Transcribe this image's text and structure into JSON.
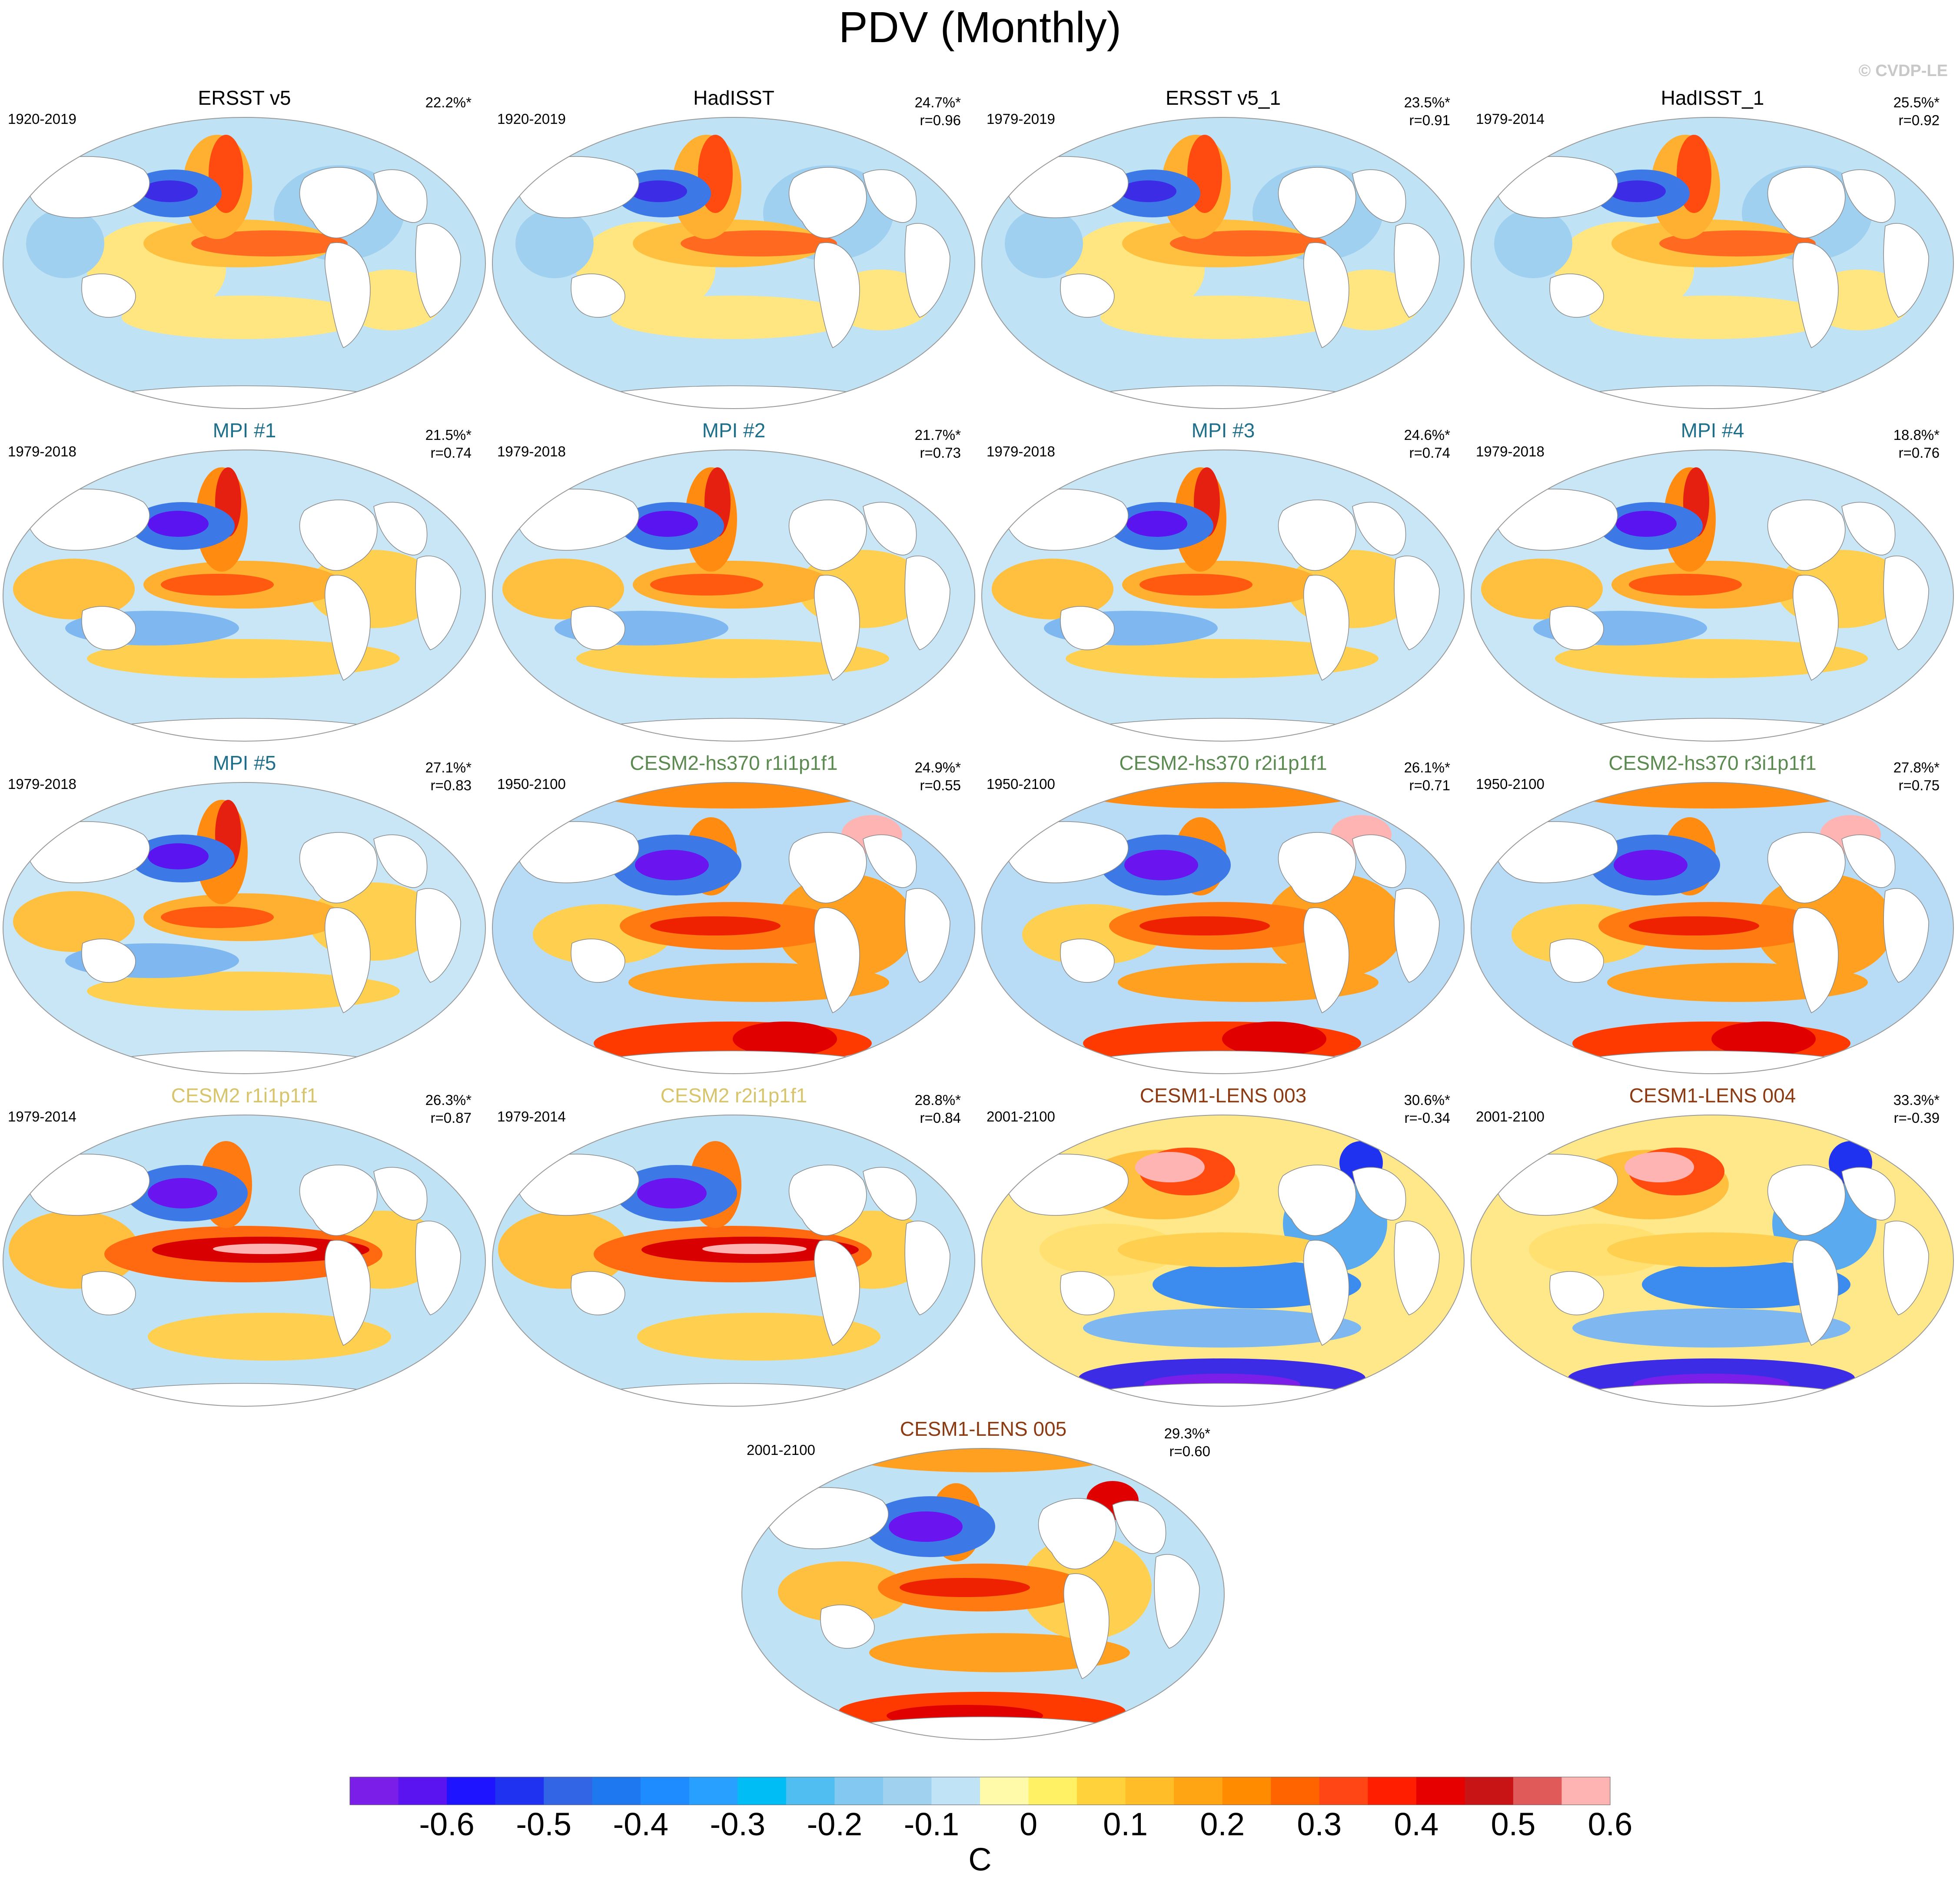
{
  "title": "PDV (Monthly)",
  "credit": "© CVDP-LE",
  "panels": [
    {
      "title": "ERSST v5",
      "title_color": "#000000",
      "period": "1920-2019",
      "variance": "22.2%*",
      "corr": "",
      "pattern": "obs"
    },
    {
      "title": "HadISST",
      "title_color": "#000000",
      "period": "1920-2019",
      "variance": "24.7%*",
      "corr": "r=0.96",
      "pattern": "obs"
    },
    {
      "title": "ERSST v5_1",
      "title_color": "#000000",
      "period": "1979-2019",
      "variance": "23.5%*",
      "corr": "r=0.91",
      "pattern": "obs"
    },
    {
      "title": "HadISST_1",
      "title_color": "#000000",
      "period": "1979-2014",
      "variance": "25.5%*",
      "corr": "r=0.92",
      "pattern": "obs"
    },
    {
      "title": "MPI #1",
      "title_color": "#1f6f8b",
      "period": "1979-2018",
      "variance": "21.5%*",
      "corr": "r=0.74",
      "pattern": "mpi"
    },
    {
      "title": "MPI #2",
      "title_color": "#1f6f8b",
      "period": "1979-2018",
      "variance": "21.7%*",
      "corr": "r=0.73",
      "pattern": "mpi"
    },
    {
      "title": "MPI #3",
      "title_color": "#1f6f8b",
      "period": "1979-2018",
      "variance": "24.6%*",
      "corr": "r=0.74",
      "pattern": "mpi"
    },
    {
      "title": "MPI #4",
      "title_color": "#1f6f8b",
      "period": "1979-2018",
      "variance": "18.8%*",
      "corr": "r=0.76",
      "pattern": "mpi"
    },
    {
      "title": "MPI #5",
      "title_color": "#1f6f8b",
      "period": "1979-2018",
      "variance": "27.1%*",
      "corr": "r=0.83",
      "pattern": "mpi"
    },
    {
      "title": "CESM2-hs370 r1i1p1f1",
      "title_color": "#5a8a50",
      "period": "1950-2100",
      "variance": "24.9%*",
      "corr": "r=0.55",
      "pattern": "hs370"
    },
    {
      "title": "CESM2-hs370 r2i1p1f1",
      "title_color": "#5a8a50",
      "period": "1950-2100",
      "variance": "26.1%*",
      "corr": "r=0.71",
      "pattern": "hs370"
    },
    {
      "title": "CESM2-hs370 r3i1p1f1",
      "title_color": "#5a8a50",
      "period": "1950-2100",
      "variance": "27.8%*",
      "corr": "r=0.75",
      "pattern": "hs370"
    },
    {
      "title": "CESM2 r1i1p1f1",
      "title_color": "#d8c46a",
      "period": "1979-2014",
      "variance": "26.3%*",
      "corr": "r=0.87",
      "pattern": "cesm2"
    },
    {
      "title": "CESM2 r2i1p1f1",
      "title_color": "#d8c46a",
      "period": "1979-2014",
      "variance": "28.8%*",
      "corr": "r=0.84",
      "pattern": "cesm2"
    },
    {
      "title": "CESM1-LENS 003",
      "title_color": "#8b3a12",
      "period": "2001-2100",
      "variance": "30.6%*",
      "corr": "r=-0.34",
      "pattern": "lens_neg"
    },
    {
      "title": "CESM1-LENS 004",
      "title_color": "#8b3a12",
      "period": "2001-2100",
      "variance": "33.3%*",
      "corr": "r=-0.39",
      "pattern": "lens_neg"
    },
    {
      "title": "CESM1-LENS 005",
      "title_color": "#8b3a12",
      "period": "2001-2100",
      "variance": "29.3%*",
      "corr": "r=0.60",
      "pattern": "lens_pos"
    }
  ],
  "colorbar": {
    "colors": [
      "#7a1ee8",
      "#5a14f0",
      "#1e14ff",
      "#1e32f0",
      "#3264e6",
      "#1e78f0",
      "#1e8cff",
      "#28a0ff",
      "#00bef5",
      "#50bef0",
      "#82c8f0",
      "#a0d2f0",
      "#c0e4f5",
      "#fffaaa",
      "#fff064",
      "#ffd23c",
      "#ffbe28",
      "#ffa514",
      "#ff8c00",
      "#ff6400",
      "#ff4614",
      "#ff1e00",
      "#e60000",
      "#c81414",
      "#e05a5a",
      "#ffb4b4"
    ],
    "tick_labels": [
      "-0.6",
      "-0.5",
      "-0.4",
      "-0.3",
      "-0.2",
      "-0.1",
      "0",
      "0.1",
      "0.2",
      "0.3",
      "0.4",
      "0.5",
      "0.6"
    ],
    "unit": "C"
  }
}
